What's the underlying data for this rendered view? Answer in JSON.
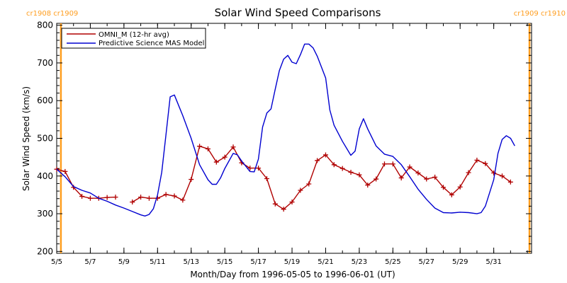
{
  "chart_data": {
    "type": "line",
    "title": "Solar Wind Speed Comparisons",
    "xlabel": "Month/Day from 1996-05-05 to 1996-06-01 (UT)",
    "ylabel": "Solar Wind Speed (km/s)",
    "xlim": [
      "1996-05-05",
      "1996-06-02T06:00"
    ],
    "ylim": [
      195,
      805
    ],
    "x_ticks": [
      {
        "date": "1996-05-05",
        "label": "5/5"
      },
      {
        "date": "1996-05-07",
        "label": "5/7"
      },
      {
        "date": "1996-05-09",
        "label": "5/9"
      },
      {
        "date": "1996-05-11",
        "label": "5/11"
      },
      {
        "date": "1996-05-13",
        "label": "5/13"
      },
      {
        "date": "1996-05-15",
        "label": "5/15"
      },
      {
        "date": "1996-05-17",
        "label": "5/17"
      },
      {
        "date": "1996-05-19",
        "label": "5/19"
      },
      {
        "date": "1996-05-21",
        "label": "5/21"
      },
      {
        "date": "1996-05-23",
        "label": "5/23"
      },
      {
        "date": "1996-05-25",
        "label": "5/25"
      },
      {
        "date": "1996-05-27",
        "label": "5/27"
      },
      {
        "date": "1996-05-29",
        "label": "5/29"
      },
      {
        "date": "1996-05-31",
        "label": "5/31"
      }
    ],
    "y_ticks": [
      200,
      300,
      400,
      500,
      600,
      700,
      800
    ],
    "grid": false,
    "legend_position": "top-left",
    "rotation_markers": [
      {
        "date": "1996-05-05T06:00",
        "left_label": "cr1908",
        "right_label": "cr1909"
      },
      {
        "date": "1996-06-02T03:00",
        "left_label": "cr1909",
        "right_label": "cr1910"
      }
    ],
    "series": [
      {
        "name": "OMNI_M (12-hr avg)",
        "color": "#b00000",
        "marker": "plus",
        "segments": [
          [
            [
              "1996-05-05T00:00",
              418
            ],
            [
              "1996-05-05T12:00",
              412
            ],
            [
              "1996-05-06T00:00",
              370
            ],
            [
              "1996-05-06T12:00",
              346
            ],
            [
              "1996-05-07T00:00",
              341
            ],
            [
              "1996-05-07T12:00",
              341
            ],
            [
              "1996-05-08T00:00",
              343
            ],
            [
              "1996-05-08T12:00",
              344
            ]
          ],
          [
            [
              "1996-05-09T12:00",
              331
            ],
            [
              "1996-05-10T00:00",
              344
            ],
            [
              "1996-05-10T12:00",
              341
            ],
            [
              "1996-05-11T00:00",
              341
            ],
            [
              "1996-05-11T12:00",
              351
            ],
            [
              "1996-05-12T00:00",
              347
            ],
            [
              "1996-05-12T12:00",
              336
            ],
            [
              "1996-05-13T00:00",
              391
            ],
            [
              "1996-05-13T12:00",
              479
            ],
            [
              "1996-05-14T00:00",
              472
            ],
            [
              "1996-05-14T12:00",
              437
            ],
            [
              "1996-05-15T00:00",
              450
            ],
            [
              "1996-05-15T12:00",
              477
            ],
            [
              "1996-05-16T00:00",
              435
            ],
            [
              "1996-05-16T12:00",
              421
            ],
            [
              "1996-05-17T00:00",
              421
            ],
            [
              "1996-05-17T12:00",
              393
            ],
            [
              "1996-05-18T00:00",
              326
            ],
            [
              "1996-05-18T12:00",
              312
            ],
            [
              "1996-05-19T00:00",
              331
            ],
            [
              "1996-05-19T12:00",
              362
            ],
            [
              "1996-05-20T00:00",
              379
            ],
            [
              "1996-05-20T12:00",
              441
            ],
            [
              "1996-05-21T00:00",
              456
            ],
            [
              "1996-05-21T12:00",
              430
            ],
            [
              "1996-05-22T00:00",
              420
            ],
            [
              "1996-05-22T12:00",
              410
            ],
            [
              "1996-05-23T00:00",
              403
            ],
            [
              "1996-05-23T12:00",
              376
            ],
            [
              "1996-05-24T00:00",
              392
            ],
            [
              "1996-05-24T12:00",
              432
            ],
            [
              "1996-05-25T00:00",
              432
            ],
            [
              "1996-05-25T12:00",
              395
            ],
            [
              "1996-05-26T00:00",
              424
            ],
            [
              "1996-05-26T12:00",
              408
            ],
            [
              "1996-05-27T00:00",
              392
            ],
            [
              "1996-05-27T12:00",
              397
            ],
            [
              "1996-05-28T00:00",
              370
            ],
            [
              "1996-05-28T12:00",
              350
            ],
            [
              "1996-05-29T00:00",
              371
            ],
            [
              "1996-05-29T12:00",
              409
            ],
            [
              "1996-05-30T00:00",
              442
            ],
            [
              "1996-05-30T12:00",
              433
            ],
            [
              "1996-05-31T00:00",
              408
            ],
            [
              "1996-05-31T12:00",
              400
            ],
            [
              "1996-06-01T00:00",
              384
            ]
          ]
        ]
      },
      {
        "name": "Predictive Science MAS Model",
        "color": "#0000d0",
        "marker": "none",
        "segments": [
          [
            [
              "1996-05-05T00:00",
              418
            ],
            [
              "1996-05-05T12:00",
              398
            ],
            [
              "1996-05-06T00:00",
              372
            ],
            [
              "1996-05-06T12:00",
              362
            ],
            [
              "1996-05-07T00:00",
              355
            ],
            [
              "1996-05-07T12:00",
              341
            ],
            [
              "1996-05-08T00:00",
              333
            ],
            [
              "1996-05-08T12:00",
              323
            ],
            [
              "1996-05-09T00:00",
              315
            ],
            [
              "1996-05-09T12:00",
              306
            ],
            [
              "1996-05-10T00:00",
              297
            ],
            [
              "1996-05-10T06:00",
              294
            ],
            [
              "1996-05-10T12:00",
              298
            ],
            [
              "1996-05-10T18:00",
              313
            ],
            [
              "1996-05-11T00:00",
              350
            ],
            [
              "1996-05-11T06:00",
              410
            ],
            [
              "1996-05-11T12:00",
              510
            ],
            [
              "1996-05-11T18:00",
              610
            ],
            [
              "1996-05-12T00:00",
              615
            ],
            [
              "1996-05-12T12:00",
              560
            ],
            [
              "1996-05-13T00:00",
              500
            ],
            [
              "1996-05-13T12:00",
              430
            ],
            [
              "1996-05-14T00:00",
              390
            ],
            [
              "1996-05-14T06:00",
              378
            ],
            [
              "1996-05-14T12:00",
              378
            ],
            [
              "1996-05-14T18:00",
              395
            ],
            [
              "1996-05-15T00:00",
              420
            ],
            [
              "1996-05-15T12:00",
              460
            ],
            [
              "1996-05-15T18:00",
              456
            ],
            [
              "1996-05-16T00:00",
              440
            ],
            [
              "1996-05-16T12:00",
              412
            ],
            [
              "1996-05-16T18:00",
              411
            ],
            [
              "1996-05-17T00:00",
              445
            ],
            [
              "1996-05-17T06:00",
              530
            ],
            [
              "1996-05-17T12:00",
              567
            ],
            [
              "1996-05-17T18:00",
              578
            ],
            [
              "1996-05-18T00:00",
              630
            ],
            [
              "1996-05-18T06:00",
              680
            ],
            [
              "1996-05-18T12:00",
              710
            ],
            [
              "1996-05-18T18:00",
              720
            ],
            [
              "1996-05-19T00:00",
              702
            ],
            [
              "1996-05-19T06:00",
              698
            ],
            [
              "1996-05-19T12:00",
              722
            ],
            [
              "1996-05-19T18:00",
              750
            ],
            [
              "1996-05-20T00:00",
              750
            ],
            [
              "1996-05-20T06:00",
              740
            ],
            [
              "1996-05-20T12:00",
              718
            ],
            [
              "1996-05-21T00:00",
              660
            ],
            [
              "1996-05-21T06:00",
              575
            ],
            [
              "1996-05-21T12:00",
              535
            ],
            [
              "1996-05-22T00:00",
              492
            ],
            [
              "1996-05-22T12:00",
              455
            ],
            [
              "1996-05-22T18:00",
              466
            ],
            [
              "1996-05-23T00:00",
              525
            ],
            [
              "1996-05-23T06:00",
              552
            ],
            [
              "1996-05-23T12:00",
              525
            ],
            [
              "1996-05-24T00:00",
              480
            ],
            [
              "1996-05-24T12:00",
              458
            ],
            [
              "1996-05-25T00:00",
              452
            ],
            [
              "1996-05-25T12:00",
              430
            ],
            [
              "1996-05-26T00:00",
              398
            ],
            [
              "1996-05-26T12:00",
              365
            ],
            [
              "1996-05-27T00:00",
              338
            ],
            [
              "1996-05-27T12:00",
              315
            ],
            [
              "1996-05-28T00:00",
              303
            ],
            [
              "1996-05-28T12:00",
              302
            ],
            [
              "1996-05-29T00:00",
              304
            ],
            [
              "1996-05-29T12:00",
              303
            ],
            [
              "1996-05-30T00:00",
              300
            ],
            [
              "1996-05-30T06:00",
              303
            ],
            [
              "1996-05-30T12:00",
              320
            ],
            [
              "1996-05-31T00:00",
              390
            ],
            [
              "1996-05-31T06:00",
              460
            ],
            [
              "1996-05-31T12:00",
              497
            ],
            [
              "1996-05-31T18:00",
              507
            ],
            [
              "1996-06-01T00:00",
              500
            ],
            [
              "1996-06-01T06:00",
              480
            ]
          ]
        ]
      }
    ]
  }
}
